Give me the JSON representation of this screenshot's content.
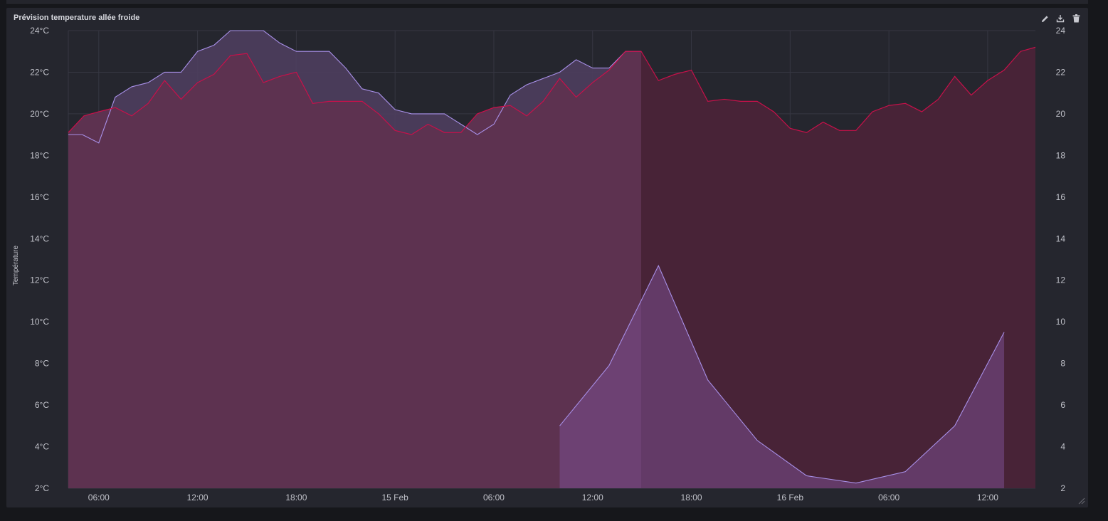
{
  "panel": {
    "title": "Prévision temperature allée froide",
    "tools": [
      "pencil-icon",
      "download-icon",
      "trash-icon"
    ]
  },
  "colors": {
    "background": "#25262e",
    "grid": "#363742",
    "series_red": "#c8104a",
    "series_purple": "#a890e8",
    "fill_red_past": "#5d3250",
    "fill_red_future": "#482337",
    "fill_purple": "#7a4e8f"
  },
  "chart_data": {
    "type": "area",
    "xlabel": "",
    "ylabel": "Température",
    "x_tick_labels": [
      "06:00",
      "12:00",
      "18:00",
      "15 Feb",
      "06:00",
      "12:00",
      "18:00",
      "16 Feb",
      "06:00",
      "12:00"
    ],
    "x_ticks_hours": [
      6,
      12,
      18,
      24,
      30,
      36,
      42,
      48,
      54,
      60
    ],
    "x_range_hours": [
      4.15,
      62.9
    ],
    "now_hour": 38.95,
    "y_left": {
      "unit": "°C",
      "range": [
        2,
        24
      ],
      "ticks": [
        2,
        4,
        6,
        8,
        10,
        12,
        14,
        16,
        18,
        20,
        22,
        24
      ]
    },
    "y_right": {
      "range": [
        2,
        24
      ],
      "ticks": [
        2,
        4,
        6,
        8,
        10,
        12,
        14,
        16,
        18,
        20,
        22,
        24
      ]
    },
    "series": [
      {
        "color": "#c8104a",
        "x": [
          4.15,
          5.1,
          6.0,
          7.0,
          8.0,
          9.0,
          10.0,
          11.0,
          12.0,
          13.0,
          14.0,
          15.0,
          16.0,
          17.0,
          18.0,
          19.0,
          20.0,
          21.0,
          22.0,
          23.0,
          24.0,
          25.0,
          26.0,
          27.0,
          28.0,
          29.0,
          30.0,
          31.0,
          32.0,
          33.0,
          34.0,
          35.0,
          36.0,
          37.0,
          38.0,
          38.95,
          40.0,
          41.0,
          42.0,
          43.0,
          44.0,
          45.0,
          46.0,
          47.0,
          48.0,
          49.0,
          50.0,
          51.0,
          52.0,
          53.0,
          54.0,
          55.0,
          56.0,
          57.0,
          58.0,
          59.0,
          60.0,
          61.0,
          62.0,
          62.9
        ],
        "values": [
          19.1,
          19.9,
          20.1,
          20.3,
          19.9,
          20.5,
          21.6,
          20.7,
          21.5,
          21.9,
          22.8,
          22.9,
          21.5,
          21.8,
          22.0,
          20.5,
          20.6,
          20.6,
          20.6,
          20.0,
          19.2,
          19.0,
          19.5,
          19.1,
          19.1,
          20.0,
          20.3,
          20.4,
          19.9,
          20.6,
          21.7,
          20.8,
          21.5,
          22.1,
          23.0,
          23.0,
          21.6,
          21.9,
          22.1,
          20.6,
          20.7,
          20.6,
          20.6,
          20.1,
          19.3,
          19.1,
          19.6,
          19.2,
          19.2,
          20.1,
          20.4,
          20.5,
          20.1,
          20.7,
          21.8,
          20.9,
          21.6,
          22.1,
          23.0,
          23.2
        ]
      },
      {
        "color": "#a890e8",
        "x": [
          4.15,
          5.0,
          6.0,
          7.0,
          8.0,
          9.0,
          10.0,
          11.0,
          12.0,
          13.0,
          14.0,
          15.0,
          16.0,
          17.0,
          18.0,
          19.0,
          20.0,
          21.0,
          22.0,
          23.0,
          24.0,
          25.0,
          26.0,
          27.0,
          28.0,
          29.0,
          30.0,
          31.0,
          32.0,
          33.0,
          34.0,
          35.0,
          36.0,
          37.0,
          38.0,
          38.95
        ],
        "values": [
          19.0,
          19.0,
          18.6,
          20.8,
          21.3,
          21.5,
          22.0,
          22.0,
          23.0,
          23.3,
          24.0,
          24.0,
          24.0,
          23.4,
          23.0,
          23.0,
          23.0,
          22.2,
          21.2,
          21.0,
          20.2,
          20.0,
          20.0,
          20.0,
          19.5,
          19.0,
          19.5,
          20.9,
          21.4,
          21.7,
          22.0,
          22.6,
          22.2,
          22.2,
          23.0,
          23.0
        ]
      },
      {
        "color": "#a890e8",
        "x": [
          34.0,
          37.0,
          40.0,
          43.0,
          46.0,
          49.0,
          52.0,
          55.0,
          58.0,
          61.0
        ],
        "values": [
          5.0,
          7.9,
          12.7,
          7.2,
          4.3,
          2.6,
          2.25,
          2.8,
          5.0,
          9.5
        ]
      }
    ]
  }
}
